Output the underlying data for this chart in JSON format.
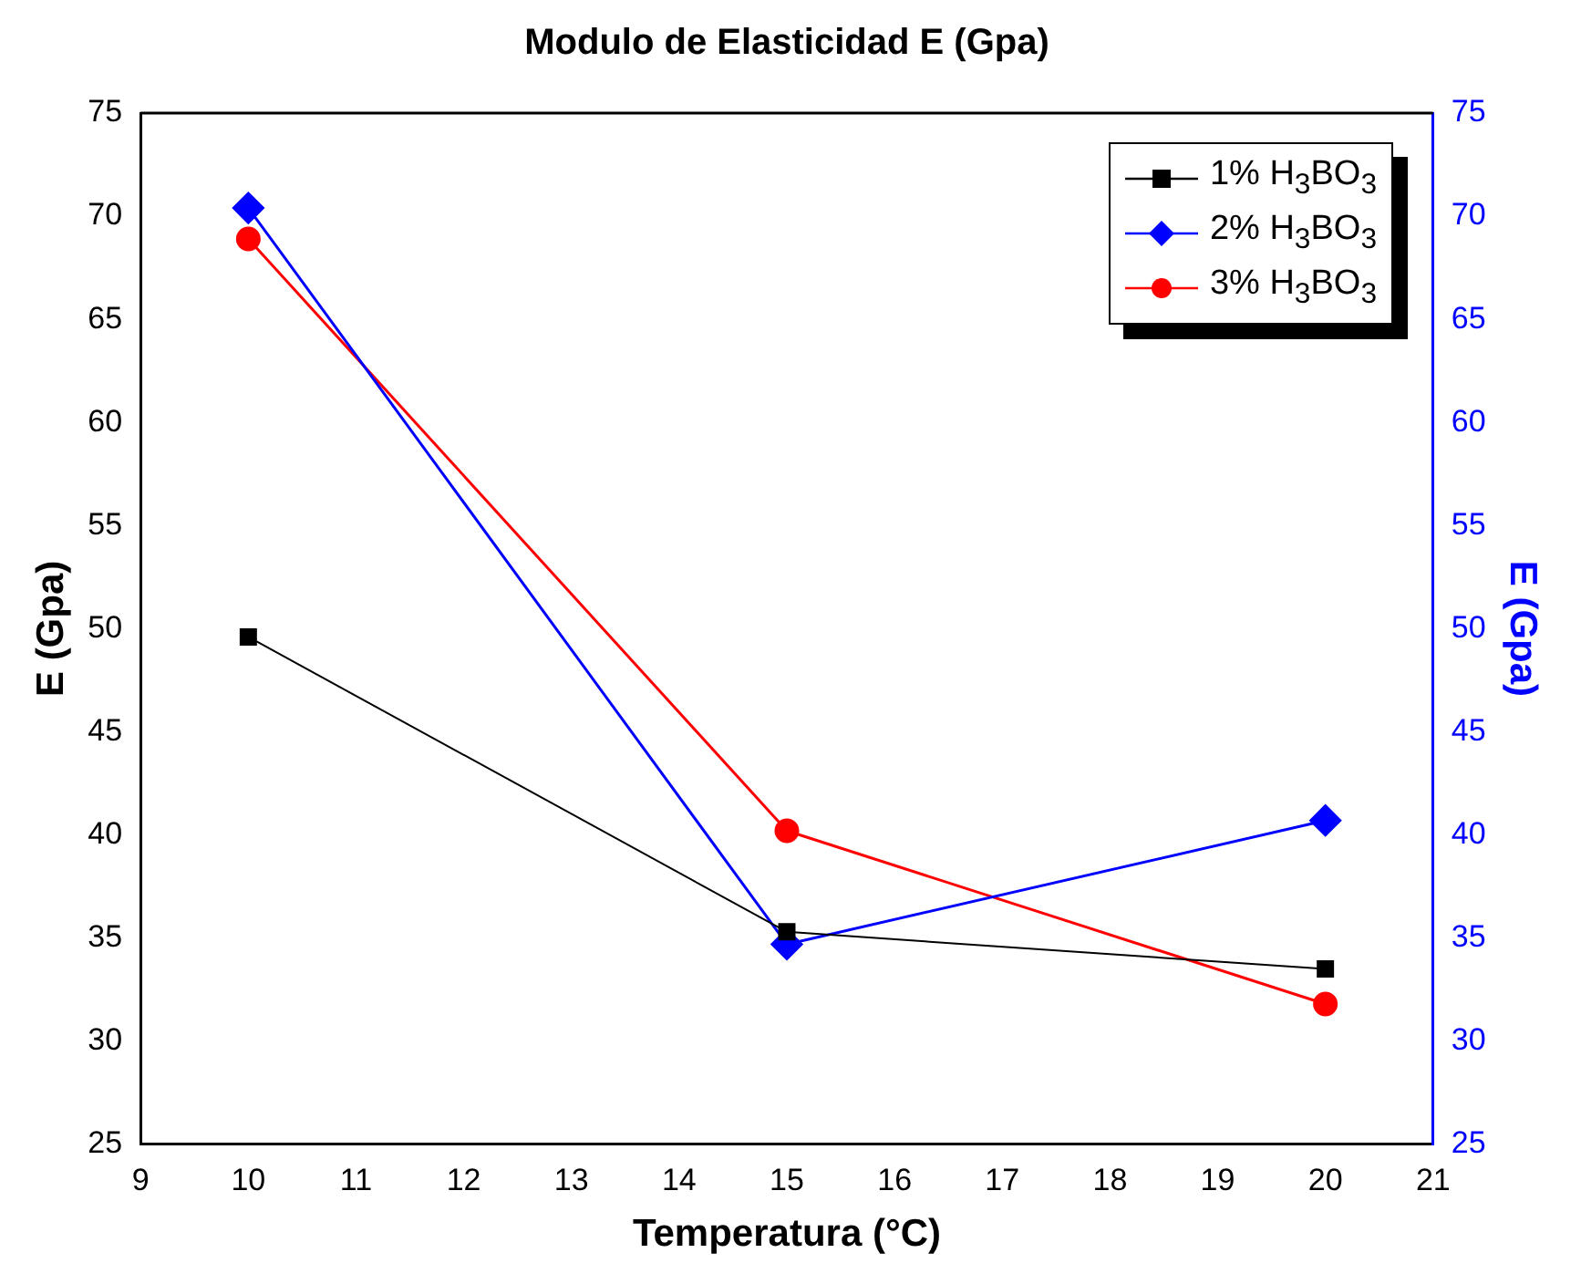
{
  "chart_data": {
    "type": "line",
    "title": "Modulo de Elasticidad E (Gpa)",
    "xlabel": "Temperatura (°C)",
    "ylabel": "E (Gpa)",
    "y2label": "E (Gpa)",
    "x": [
      10,
      15,
      20
    ],
    "series": [
      {
        "name": "1% H$_{3}$BO$_{3}$",
        "color": "#000000",
        "marker": "square",
        "values": [
          49.6,
          35.3,
          33.5
        ]
      },
      {
        "name": "2% H$_{3}$BO$_{3}$",
        "color": "#0000ff",
        "marker": "diamond",
        "axis": "y2",
        "values": [
          70.4,
          34.7,
          40.7
        ]
      },
      {
        "name": "3% H$_{3}$BO$_{3}$",
        "color": "#ff0000",
        "marker": "circle",
        "values": [
          68.9,
          40.2,
          31.8
        ]
      }
    ],
    "xlim": [
      9,
      21
    ],
    "xticks": [
      9,
      10,
      11,
      12,
      13,
      14,
      15,
      16,
      17,
      18,
      19,
      20,
      21
    ],
    "ylim": [
      25,
      75
    ],
    "yticks": [
      25,
      30,
      35,
      40,
      45,
      50,
      55,
      60,
      65,
      70,
      75
    ],
    "y2lim": [
      25,
      75
    ],
    "y2ticks": [
      25,
      30,
      35,
      40,
      45,
      50,
      55,
      60,
      65,
      70,
      75
    ],
    "grid": false,
    "legend": "top right"
  }
}
